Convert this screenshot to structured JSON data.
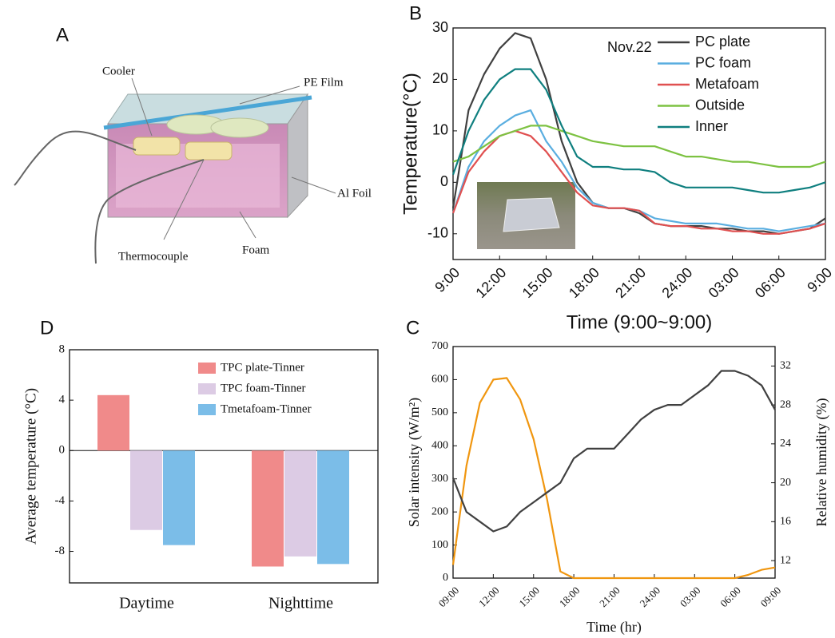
{
  "panel_a": {
    "label": "A",
    "labels": {
      "cooler": "Cooler",
      "pe_film": "PE Film",
      "al_foil": "Al Foil",
      "thermocouple": "Thermocouple",
      "foam": "Foam"
    }
  },
  "chart_data": [
    {
      "type": "line",
      "panel_label": "B",
      "annotation": "Nov.22",
      "y_label": "Temperature(°C)",
      "x_label": "Time (9:00~9:00)",
      "x": [
        0,
        1,
        2,
        3,
        4,
        5,
        6,
        7,
        8,
        9,
        10,
        11,
        12,
        13,
        14,
        15,
        16,
        17,
        18,
        19,
        20,
        21,
        22,
        23,
        24
      ],
      "xlim": [
        0,
        24
      ],
      "xticks": [
        {
          "value": 0,
          "label": "9:00"
        },
        {
          "value": 3,
          "label": "12:00"
        },
        {
          "value": 6,
          "label": "15:00"
        },
        {
          "value": 9,
          "label": "18:00"
        },
        {
          "value": 12,
          "label": "21:00"
        },
        {
          "value": 15,
          "label": "24:00"
        },
        {
          "value": 18,
          "label": "03:00"
        },
        {
          "value": 21,
          "label": "06:00"
        },
        {
          "value": 24,
          "label": "9:00"
        }
      ],
      "ylim": [
        -15,
        30
      ],
      "yticks": [
        -10,
        0,
        10,
        20,
        30
      ],
      "legend": "upper right",
      "series": [
        {
          "name": "PC plate",
          "color": "#404040",
          "values": [
            -5,
            14,
            21,
            26,
            29,
            28,
            20,
            8,
            0,
            -4,
            -5,
            -5,
            -6,
            -8,
            -8.5,
            -8.5,
            -8.5,
            -9,
            -9,
            -9.5,
            -9.5,
            -10,
            -9.5,
            -9,
            -7
          ]
        },
        {
          "name": "PC foam",
          "color": "#5aaee0",
          "values": [
            -6,
            3,
            8,
            11,
            13,
            14,
            8,
            4,
            -1,
            -4,
            -5,
            -5,
            -5.5,
            -7,
            -7.5,
            -8,
            -8,
            -8,
            -8.5,
            -9,
            -9,
            -9.5,
            -9,
            -8.5,
            -8
          ]
        },
        {
          "name": "Metafoam",
          "color": "#e05050",
          "values": [
            -6,
            2,
            6,
            9,
            10,
            9,
            6,
            2,
            -2,
            -4.5,
            -5,
            -5,
            -5.5,
            -8,
            -8.5,
            -8.5,
            -9,
            -9,
            -9.5,
            -9.5,
            -10,
            -10,
            -9.5,
            -9,
            -8
          ]
        },
        {
          "name": "Outside",
          "color": "#7dc242",
          "values": [
            4,
            5,
            7,
            9,
            10,
            11,
            11,
            10,
            9,
            8,
            7.5,
            7,
            7,
            7,
            6,
            5,
            5,
            4.5,
            4,
            4,
            3.5,
            3,
            3,
            3,
            4
          ]
        },
        {
          "name": "Inner",
          "color": "#0f7f7f",
          "values": [
            1.5,
            10,
            16,
            20,
            22,
            22,
            18,
            11,
            5,
            3,
            3,
            2.5,
            2.5,
            2,
            0,
            -1,
            -1,
            -1,
            -1,
            -1.5,
            -2,
            -2,
            -1.5,
            -1,
            0
          ]
        }
      ]
    },
    {
      "type": "bar",
      "panel_label": "D",
      "y_label": "Average temperature (°C)",
      "categories": [
        "Daytime",
        "Nighttime"
      ],
      "ylim": [
        -10.5,
        8
      ],
      "yticks": [
        -8,
        -4,
        0,
        4,
        8
      ],
      "legend": "upper right",
      "series": [
        {
          "name": "TPC plate-Tinner",
          "color": "#f08a8a",
          "values": [
            4.4,
            -9.2
          ]
        },
        {
          "name": "TPC foam-Tinner",
          "color": "#dccbe4",
          "values": [
            -6.3,
            -8.4
          ]
        },
        {
          "name": "Tmetafoam-Tinner",
          "color": "#7bbde8",
          "values": [
            -7.5,
            -9.0
          ]
        }
      ]
    },
    {
      "type": "line",
      "panel_label": "C",
      "x_label": "Time (hr)",
      "y_label": "Solar intensity (W/m²)",
      "y2_label": "Relative humidity (%)",
      "x": [
        0,
        1,
        2,
        3,
        4,
        5,
        6,
        7,
        8,
        9,
        10,
        11,
        12,
        13,
        14,
        15,
        16,
        17,
        18,
        19,
        20,
        21,
        22,
        23,
        24
      ],
      "xlim": [
        0,
        24
      ],
      "xticks": [
        {
          "value": 0,
          "label": "09:00"
        },
        {
          "value": 3,
          "label": "12:00"
        },
        {
          "value": 6,
          "label": "15:00"
        },
        {
          "value": 9,
          "label": "18:00"
        },
        {
          "value": 12,
          "label": "21:00"
        },
        {
          "value": 15,
          "label": "24:00"
        },
        {
          "value": 18,
          "label": "03:00"
        },
        {
          "value": 21,
          "label": "06:00"
        },
        {
          "value": 24,
          "label": "09:00"
        }
      ],
      "ylim": [
        0,
        700
      ],
      "yticks": [
        0,
        100,
        200,
        300,
        400,
        500,
        600,
        700
      ],
      "y2lim": [
        10.2,
        34
      ],
      "y2ticks": [
        12,
        16,
        20,
        24,
        28,
        32
      ],
      "series": [
        {
          "color": "#f0960f",
          "values": [
            40,
            340,
            530,
            600,
            605,
            540,
            420,
            240,
            20,
            0,
            0,
            0,
            0,
            0,
            0,
            0,
            0,
            0,
            0,
            0,
            0,
            0,
            10,
            25,
            32
          ]
        },
        {
          "color": "#404040",
          "axis": "y2",
          "values": [
            20.5,
            17,
            16,
            15,
            15.5,
            17,
            18,
            19,
            20,
            22.5,
            23.5,
            23.5,
            23.5,
            25,
            26.5,
            27.5,
            28,
            28,
            29,
            30,
            31.5,
            31.5,
            31,
            30,
            27.5
          ]
        }
      ]
    }
  ]
}
